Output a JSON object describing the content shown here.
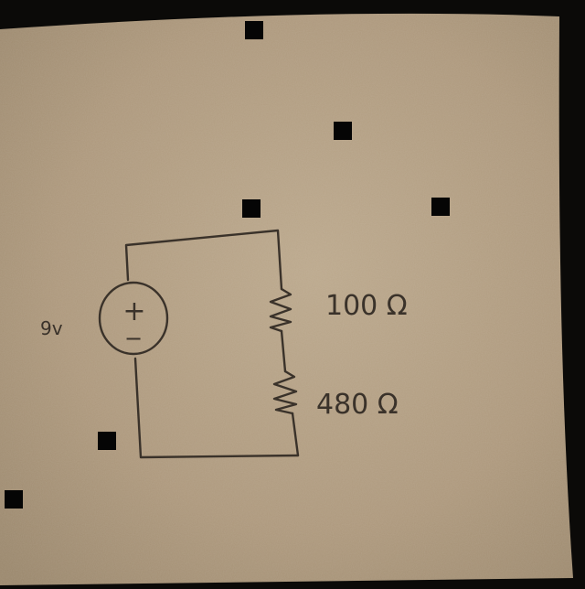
{
  "diagram": {
    "source": {
      "voltage_label": "9v",
      "plus_symbol": "+",
      "minus_symbol": "−"
    },
    "resistors": [
      {
        "value_label": "100 Ω"
      },
      {
        "value_label": "480 Ω"
      }
    ]
  },
  "colors": {
    "paper": "#b09b7f",
    "paper_light": "#bba88c",
    "ink": "#3a322a",
    "background": "#0b0a08",
    "marker": "#050505"
  }
}
